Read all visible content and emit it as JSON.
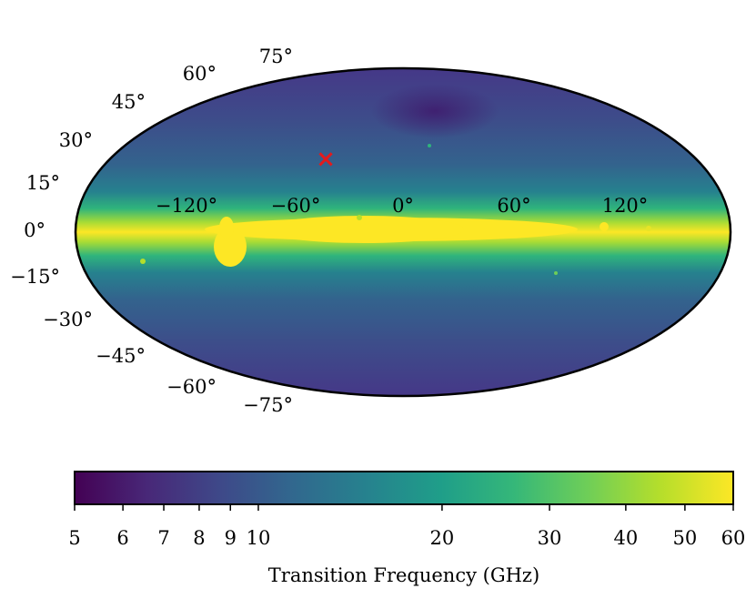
{
  "chart_data": {
    "type": "heatmap",
    "projection": "mollweide",
    "latitude_ticks": [
      {
        "value": 75,
        "label": "75°"
      },
      {
        "value": 60,
        "label": "60°"
      },
      {
        "value": 45,
        "label": "45°"
      },
      {
        "value": 30,
        "label": "30°"
      },
      {
        "value": 15,
        "label": "15°"
      },
      {
        "value": 0,
        "label": "0°"
      },
      {
        "value": -15,
        "label": "−15°"
      },
      {
        "value": -30,
        "label": "−30°"
      },
      {
        "value": -45,
        "label": "−45°"
      },
      {
        "value": -60,
        "label": "−60°"
      },
      {
        "value": -75,
        "label": "−75°"
      }
    ],
    "longitude_ticks": [
      {
        "value": -120,
        "label": "−120°"
      },
      {
        "value": -60,
        "label": "−60°"
      },
      {
        "value": 0,
        "label": "0°"
      },
      {
        "value": 60,
        "label": "60°"
      },
      {
        "value": 120,
        "label": "120°"
      }
    ],
    "marker": {
      "symbol": "×",
      "color": "#e31a1c",
      "lon": -45,
      "lat": 27
    },
    "colorbar": {
      "label": "Transition Frequency (GHz)",
      "scale": "log",
      "range": [
        5,
        60
      ],
      "colormap": "viridis",
      "ticks": [
        {
          "value": 5,
          "label": "5"
        },
        {
          "value": 6,
          "label": "6"
        },
        {
          "value": 7,
          "label": "7"
        },
        {
          "value": 8,
          "label": "8"
        },
        {
          "value": 9,
          "label": "9"
        },
        {
          "value": 10,
          "label": "10"
        },
        {
          "value": 20,
          "label": "20"
        },
        {
          "value": 30,
          "label": "30"
        },
        {
          "value": 40,
          "label": "40"
        },
        {
          "value": 50,
          "label": "50"
        },
        {
          "value": 60,
          "label": "60"
        }
      ]
    },
    "colors": {
      "viridis": [
        "#440154",
        "#482878",
        "#3e4989",
        "#31688e",
        "#26828e",
        "#1f9e89",
        "#35b779",
        "#6ece58",
        "#b5de2b",
        "#fde725"
      ],
      "plane": "#fde725",
      "background_sky": "#3a5a8e"
    }
  }
}
